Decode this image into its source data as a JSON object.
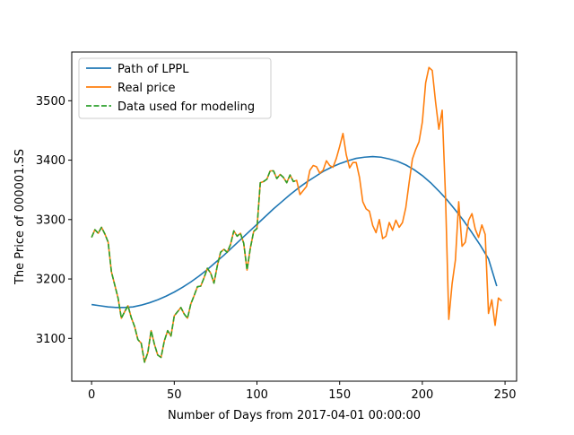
{
  "chart_data": {
    "type": "line",
    "title": "",
    "xlabel": "Number of Days from 2017-04-01 00:00:00",
    "ylabel": "The Price of 000001.SS",
    "xlim": [
      -12,
      257
    ],
    "ylim": [
      3028,
      3582
    ],
    "xticks": [
      0,
      50,
      100,
      150,
      200,
      250
    ],
    "yticks": [
      3100,
      3200,
      3300,
      3400,
      3500
    ],
    "grid": false,
    "legend": {
      "position": "upper-left",
      "entries": [
        "Path of LPPL",
        "Real price",
        "Data used for modeling"
      ]
    },
    "series": [
      {
        "name": "Path of LPPL",
        "color": "#1f77b4",
        "style": "solid",
        "points": [
          [
            0,
            3157
          ],
          [
            5,
            3155
          ],
          [
            10,
            3153
          ],
          [
            15,
            3152
          ],
          [
            20,
            3152
          ],
          [
            25,
            3153
          ],
          [
            30,
            3156
          ],
          [
            35,
            3160
          ],
          [
            40,
            3165
          ],
          [
            45,
            3171
          ],
          [
            50,
            3178
          ],
          [
            55,
            3186
          ],
          [
            60,
            3195
          ],
          [
            65,
            3205
          ],
          [
            70,
            3216
          ],
          [
            75,
            3228
          ],
          [
            80,
            3240
          ],
          [
            85,
            3253
          ],
          [
            90,
            3266
          ],
          [
            95,
            3279
          ],
          [
            100,
            3292
          ],
          [
            105,
            3305
          ],
          [
            110,
            3318
          ],
          [
            115,
            3330
          ],
          [
            120,
            3342
          ],
          [
            125,
            3353
          ],
          [
            130,
            3363
          ],
          [
            135,
            3372
          ],
          [
            140,
            3381
          ],
          [
            145,
            3388
          ],
          [
            150,
            3394
          ],
          [
            155,
            3399
          ],
          [
            160,
            3403
          ],
          [
            165,
            3405
          ],
          [
            170,
            3406
          ],
          [
            175,
            3405
          ],
          [
            180,
            3402
          ],
          [
            185,
            3398
          ],
          [
            190,
            3392
          ],
          [
            195,
            3384
          ],
          [
            200,
            3374
          ],
          [
            205,
            3362
          ],
          [
            210,
            3348
          ],
          [
            215,
            3333
          ],
          [
            220,
            3316
          ],
          [
            225,
            3298
          ],
          [
            230,
            3278
          ],
          [
            235,
            3257
          ],
          [
            240,
            3234
          ],
          [
            245,
            3188
          ]
        ]
      },
      {
        "name": "Real price",
        "color": "#ff7f0e",
        "style": "solid",
        "points": [
          [
            0,
            3270
          ],
          [
            2,
            3283
          ],
          [
            4,
            3277
          ],
          [
            6,
            3287
          ],
          [
            8,
            3276
          ],
          [
            10,
            3262
          ],
          [
            12,
            3212
          ],
          [
            14,
            3190
          ],
          [
            16,
            3168
          ],
          [
            18,
            3134
          ],
          [
            20,
            3145
          ],
          [
            22,
            3155
          ],
          [
            24,
            3135
          ],
          [
            26,
            3120
          ],
          [
            28,
            3098
          ],
          [
            30,
            3092
          ],
          [
            32,
            3060
          ],
          [
            34,
            3076
          ],
          [
            36,
            3113
          ],
          [
            38,
            3090
          ],
          [
            40,
            3072
          ],
          [
            42,
            3068
          ],
          [
            44,
            3096
          ],
          [
            46,
            3113
          ],
          [
            48,
            3104
          ],
          [
            50,
            3138
          ],
          [
            52,
            3145
          ],
          [
            54,
            3152
          ],
          [
            56,
            3141
          ],
          [
            58,
            3134
          ],
          [
            60,
            3158
          ],
          [
            62,
            3172
          ],
          [
            64,
            3187
          ],
          [
            66,
            3188
          ],
          [
            68,
            3202
          ],
          [
            70,
            3218
          ],
          [
            72,
            3210
          ],
          [
            74,
            3193
          ],
          [
            76,
            3222
          ],
          [
            78,
            3245
          ],
          [
            80,
            3250
          ],
          [
            82,
            3245
          ],
          [
            84,
            3258
          ],
          [
            86,
            3281
          ],
          [
            88,
            3272
          ],
          [
            90,
            3277
          ],
          [
            92,
            3260
          ],
          [
            94,
            3215
          ],
          [
            96,
            3252
          ],
          [
            98,
            3280
          ],
          [
            100,
            3285
          ],
          [
            102,
            3362
          ],
          [
            104,
            3364
          ],
          [
            106,
            3368
          ],
          [
            108,
            3382
          ],
          [
            110,
            3382
          ],
          [
            112,
            3369
          ],
          [
            114,
            3376
          ],
          [
            116,
            3371
          ],
          [
            118,
            3362
          ],
          [
            120,
            3375
          ],
          [
            122,
            3364
          ],
          [
            124,
            3366
          ],
          [
            126,
            3342
          ],
          [
            128,
            3349
          ],
          [
            130,
            3356
          ],
          [
            132,
            3383
          ],
          [
            134,
            3391
          ],
          [
            136,
            3389
          ],
          [
            138,
            3378
          ],
          [
            140,
            3383
          ],
          [
            142,
            3399
          ],
          [
            144,
            3391
          ],
          [
            146,
            3388
          ],
          [
            148,
            3403
          ],
          [
            150,
            3423
          ],
          [
            152,
            3445
          ],
          [
            154,
            3409
          ],
          [
            156,
            3387
          ],
          [
            158,
            3396
          ],
          [
            160,
            3396
          ],
          [
            162,
            3371
          ],
          [
            164,
            3330
          ],
          [
            166,
            3318
          ],
          [
            168,
            3314
          ],
          [
            170,
            3290
          ],
          [
            172,
            3278
          ],
          [
            174,
            3300
          ],
          [
            176,
            3268
          ],
          [
            178,
            3272
          ],
          [
            180,
            3295
          ],
          [
            182,
            3282
          ],
          [
            184,
            3299
          ],
          [
            186,
            3287
          ],
          [
            188,
            3295
          ],
          [
            190,
            3320
          ],
          [
            192,
            3362
          ],
          [
            194,
            3402
          ],
          [
            196,
            3418
          ],
          [
            198,
            3431
          ],
          [
            200,
            3464
          ],
          [
            202,
            3530
          ],
          [
            204,
            3556
          ],
          [
            206,
            3551
          ],
          [
            208,
            3498
          ],
          [
            210,
            3452
          ],
          [
            212,
            3484
          ],
          [
            214,
            3340
          ],
          [
            216,
            3132
          ],
          [
            218,
            3192
          ],
          [
            220,
            3232
          ],
          [
            222,
            3330
          ],
          [
            224,
            3255
          ],
          [
            226,
            3262
          ],
          [
            228,
            3299
          ],
          [
            230,
            3310
          ],
          [
            232,
            3284
          ],
          [
            234,
            3270
          ],
          [
            236,
            3291
          ],
          [
            238,
            3275
          ],
          [
            240,
            3142
          ],
          [
            242,
            3165
          ],
          [
            244,
            3122
          ],
          [
            246,
            3168
          ],
          [
            248,
            3163
          ]
        ]
      },
      {
        "name": "Data used for modeling",
        "color": "#2ca02c",
        "style": "dashed",
        "points": [
          [
            0,
            3270
          ],
          [
            2,
            3283
          ],
          [
            4,
            3277
          ],
          [
            6,
            3287
          ],
          [
            8,
            3276
          ],
          [
            10,
            3262
          ],
          [
            12,
            3212
          ],
          [
            14,
            3190
          ],
          [
            16,
            3168
          ],
          [
            18,
            3134
          ],
          [
            20,
            3145
          ],
          [
            22,
            3155
          ],
          [
            24,
            3135
          ],
          [
            26,
            3120
          ],
          [
            28,
            3098
          ],
          [
            30,
            3092
          ],
          [
            32,
            3060
          ],
          [
            34,
            3076
          ],
          [
            36,
            3113
          ],
          [
            38,
            3090
          ],
          [
            40,
            3072
          ],
          [
            42,
            3068
          ],
          [
            44,
            3096
          ],
          [
            46,
            3113
          ],
          [
            48,
            3104
          ],
          [
            50,
            3138
          ],
          [
            52,
            3145
          ],
          [
            54,
            3152
          ],
          [
            56,
            3141
          ],
          [
            58,
            3134
          ],
          [
            60,
            3158
          ],
          [
            62,
            3172
          ],
          [
            64,
            3187
          ],
          [
            66,
            3188
          ],
          [
            68,
            3202
          ],
          [
            70,
            3218
          ],
          [
            72,
            3210
          ],
          [
            74,
            3193
          ],
          [
            76,
            3222
          ],
          [
            78,
            3245
          ],
          [
            80,
            3250
          ],
          [
            82,
            3245
          ],
          [
            84,
            3258
          ],
          [
            86,
            3281
          ],
          [
            88,
            3272
          ],
          [
            90,
            3277
          ],
          [
            92,
            3260
          ],
          [
            94,
            3215
          ],
          [
            96,
            3252
          ],
          [
            98,
            3280
          ],
          [
            100,
            3285
          ],
          [
            102,
            3362
          ],
          [
            104,
            3364
          ],
          [
            106,
            3368
          ],
          [
            108,
            3382
          ],
          [
            110,
            3382
          ],
          [
            112,
            3369
          ],
          [
            114,
            3376
          ],
          [
            116,
            3371
          ],
          [
            118,
            3362
          ],
          [
            120,
            3375
          ],
          [
            122,
            3364
          ],
          [
            124,
            3366
          ]
        ]
      }
    ]
  }
}
